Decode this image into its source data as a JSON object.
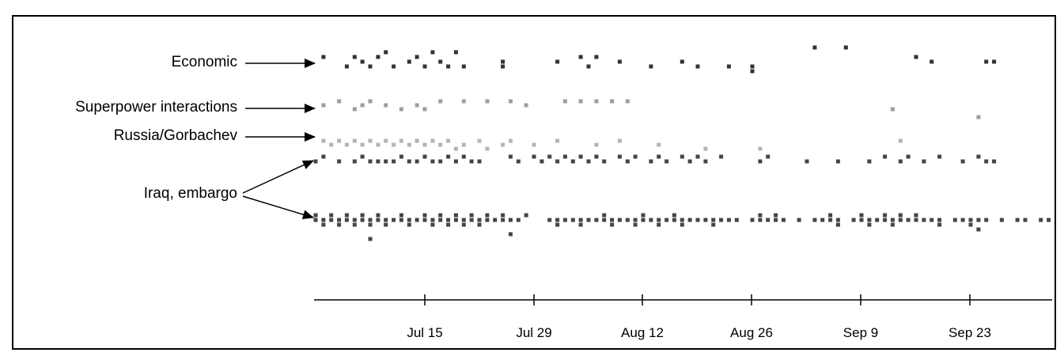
{
  "chart_data": {
    "type": "scatter",
    "xlabel": "",
    "ylabel": "",
    "x_ticks": [
      "Jul 15",
      "Jul 29",
      "Aug 12",
      "Aug 26",
      "Sep 9",
      "Sep 23"
    ],
    "xlim": [
      "2025-07-01",
      "2025-10-07"
    ],
    "grid": false,
    "annotations": [
      {
        "text": "Economic",
        "targets": [
          "economic"
        ]
      },
      {
        "text": "Superpower interactions",
        "targets": [
          "superpower"
        ]
      },
      {
        "text": "Russia/Gorbachev",
        "targets": [
          "russia"
        ]
      },
      {
        "text": "Iraq, embargo",
        "targets": [
          "iraq-upper",
          "iraq-lower"
        ]
      }
    ],
    "series": [
      {
        "id": "economic",
        "color": "#333333",
        "points": [
          [
            "2025-07-02",
            2
          ],
          [
            "2025-07-05",
            0
          ],
          [
            "2025-07-06",
            2
          ],
          [
            "2025-07-07",
            1
          ],
          [
            "2025-07-08",
            0
          ],
          [
            "2025-07-09",
            2
          ],
          [
            "2025-07-10",
            3
          ],
          [
            "2025-07-11",
            0
          ],
          [
            "2025-07-13",
            1
          ],
          [
            "2025-07-14",
            2
          ],
          [
            "2025-07-15",
            0
          ],
          [
            "2025-07-16",
            3
          ],
          [
            "2025-07-17",
            1
          ],
          [
            "2025-07-18",
            0
          ],
          [
            "2025-07-19",
            3
          ],
          [
            "2025-07-20",
            0
          ],
          [
            "2025-07-25",
            1
          ],
          [
            "2025-07-25",
            0
          ],
          [
            "2025-08-01",
            1
          ],
          [
            "2025-08-04",
            2
          ],
          [
            "2025-08-05",
            0
          ],
          [
            "2025-08-06",
            2
          ],
          [
            "2025-08-09",
            1
          ],
          [
            "2025-08-13",
            0
          ],
          [
            "2025-08-17",
            1
          ],
          [
            "2025-08-19",
            0
          ],
          [
            "2025-08-23",
            0
          ],
          [
            "2025-08-26",
            -1
          ],
          [
            "2025-08-26",
            0
          ],
          [
            "2025-09-03",
            4
          ],
          [
            "2025-09-07",
            4
          ],
          [
            "2025-09-16",
            2
          ],
          [
            "2025-09-18",
            1
          ],
          [
            "2025-09-25",
            1
          ],
          [
            "2025-09-26",
            1
          ]
        ]
      },
      {
        "id": "superpower",
        "color": "#9e9e9e",
        "points": [
          [
            "2025-07-02",
            1
          ],
          [
            "2025-07-04",
            2
          ],
          [
            "2025-07-06",
            0
          ],
          [
            "2025-07-07",
            1
          ],
          [
            "2025-07-08",
            2
          ],
          [
            "2025-07-10",
            1
          ],
          [
            "2025-07-12",
            0
          ],
          [
            "2025-07-14",
            1
          ],
          [
            "2025-07-15",
            0
          ],
          [
            "2025-07-17",
            2
          ],
          [
            "2025-07-20",
            2
          ],
          [
            "2025-07-23",
            2
          ],
          [
            "2025-07-26",
            2
          ],
          [
            "2025-07-28",
            1
          ],
          [
            "2025-08-02",
            2
          ],
          [
            "2025-08-04",
            2
          ],
          [
            "2025-08-06",
            2
          ],
          [
            "2025-08-08",
            2
          ],
          [
            "2025-08-10",
            2
          ],
          [
            "2025-09-13",
            0
          ],
          [
            "2025-09-24",
            -2
          ]
        ]
      },
      {
        "id": "russia",
        "color": "#b4b4b4",
        "points": [
          [
            "2025-07-02",
            1
          ],
          [
            "2025-07-03",
            0
          ],
          [
            "2025-07-04",
            1
          ],
          [
            "2025-07-05",
            0
          ],
          [
            "2025-07-06",
            1
          ],
          [
            "2025-07-07",
            0
          ],
          [
            "2025-07-08",
            1
          ],
          [
            "2025-07-09",
            0
          ],
          [
            "2025-07-10",
            1
          ],
          [
            "2025-07-11",
            0
          ],
          [
            "2025-07-12",
            1
          ],
          [
            "2025-07-13",
            0
          ],
          [
            "2025-07-14",
            1
          ],
          [
            "2025-07-15",
            0
          ],
          [
            "2025-07-16",
            1
          ],
          [
            "2025-07-17",
            0
          ],
          [
            "2025-07-18",
            1
          ],
          [
            "2025-07-19",
            -1
          ],
          [
            "2025-07-20",
            0
          ],
          [
            "2025-07-22",
            1
          ],
          [
            "2025-07-23",
            -1
          ],
          [
            "2025-07-25",
            0
          ],
          [
            "2025-07-26",
            1
          ],
          [
            "2025-07-29",
            0
          ],
          [
            "2025-08-01",
            1
          ],
          [
            "2025-08-06",
            0
          ],
          [
            "2025-08-09",
            1
          ],
          [
            "2025-08-14",
            0
          ],
          [
            "2025-08-20",
            -1
          ],
          [
            "2025-08-27",
            -1
          ],
          [
            "2025-09-14",
            1
          ],
          [
            "2025-10-05",
            0
          ]
        ]
      },
      {
        "id": "iraq-upper",
        "color": "#444444",
        "points": [
          [
            "2025-07-01",
            0
          ],
          [
            "2025-07-02",
            1
          ],
          [
            "2025-07-04",
            0
          ],
          [
            "2025-07-06",
            0
          ],
          [
            "2025-07-07",
            1
          ],
          [
            "2025-07-08",
            0
          ],
          [
            "2025-07-09",
            0
          ],
          [
            "2025-07-10",
            0
          ],
          [
            "2025-07-11",
            0
          ],
          [
            "2025-07-12",
            1
          ],
          [
            "2025-07-13",
            0
          ],
          [
            "2025-07-14",
            0
          ],
          [
            "2025-07-15",
            1
          ],
          [
            "2025-07-16",
            0
          ],
          [
            "2025-07-17",
            0
          ],
          [
            "2025-07-18",
            1
          ],
          [
            "2025-07-19",
            0
          ],
          [
            "2025-07-20",
            1
          ],
          [
            "2025-07-21",
            0
          ],
          [
            "2025-07-22",
            0
          ],
          [
            "2025-07-26",
            1
          ],
          [
            "2025-07-27",
            0
          ],
          [
            "2025-07-29",
            1
          ],
          [
            "2025-07-30",
            0
          ],
          [
            "2025-07-31",
            1
          ],
          [
            "2025-08-01",
            0
          ],
          [
            "2025-08-02",
            1
          ],
          [
            "2025-08-03",
            0
          ],
          [
            "2025-08-04",
            1
          ],
          [
            "2025-08-05",
            0
          ],
          [
            "2025-08-06",
            1
          ],
          [
            "2025-08-07",
            0
          ],
          [
            "2025-08-09",
            1
          ],
          [
            "2025-08-10",
            0
          ],
          [
            "2025-08-11",
            1
          ],
          [
            "2025-08-13",
            0
          ],
          [
            "2025-08-14",
            1
          ],
          [
            "2025-08-15",
            0
          ],
          [
            "2025-08-17",
            1
          ],
          [
            "2025-08-18",
            0
          ],
          [
            "2025-08-19",
            1
          ],
          [
            "2025-08-20",
            0
          ],
          [
            "2025-08-22",
            1
          ],
          [
            "2025-08-27",
            0
          ],
          [
            "2025-08-28",
            1
          ],
          [
            "2025-09-02",
            0
          ],
          [
            "2025-09-06",
            0
          ],
          [
            "2025-09-10",
            0
          ],
          [
            "2025-09-12",
            1
          ],
          [
            "2025-09-14",
            0
          ],
          [
            "2025-09-15",
            1
          ],
          [
            "2025-09-17",
            0
          ],
          [
            "2025-09-19",
            1
          ],
          [
            "2025-09-22",
            0
          ],
          [
            "2025-09-24",
            1
          ],
          [
            "2025-09-25",
            0
          ],
          [
            "2025-09-26",
            0
          ]
        ]
      },
      {
        "id": "iraq-lower",
        "color": "#444444",
        "points": [
          [
            "2025-07-01",
            0
          ],
          [
            "2025-07-01",
            1
          ],
          [
            "2025-07-02",
            0
          ],
          [
            "2025-07-02",
            -1
          ],
          [
            "2025-07-03",
            0
          ],
          [
            "2025-07-03",
            1
          ],
          [
            "2025-07-04",
            0
          ],
          [
            "2025-07-04",
            -1
          ],
          [
            "2025-07-05",
            0
          ],
          [
            "2025-07-05",
            1
          ],
          [
            "2025-07-06",
            0
          ],
          [
            "2025-07-06",
            -1
          ],
          [
            "2025-07-07",
            0
          ],
          [
            "2025-07-07",
            1
          ],
          [
            "2025-07-08",
            0
          ],
          [
            "2025-07-08",
            -1
          ],
          [
            "2025-07-09",
            0
          ],
          [
            "2025-07-09",
            1
          ],
          [
            "2025-07-10",
            0
          ],
          [
            "2025-07-10",
            -1
          ],
          [
            "2025-07-11",
            0
          ],
          [
            "2025-07-12",
            0
          ],
          [
            "2025-07-12",
            1
          ],
          [
            "2025-07-13",
            0
          ],
          [
            "2025-07-13",
            -1
          ],
          [
            "2025-07-14",
            0
          ],
          [
            "2025-07-15",
            0
          ],
          [
            "2025-07-15",
            1
          ],
          [
            "2025-07-16",
            0
          ],
          [
            "2025-07-16",
            -1
          ],
          [
            "2025-07-17",
            0
          ],
          [
            "2025-07-17",
            1
          ],
          [
            "2025-07-18",
            0
          ],
          [
            "2025-07-18",
            -1
          ],
          [
            "2025-07-19",
            0
          ],
          [
            "2025-07-19",
            1
          ],
          [
            "2025-07-20",
            0
          ],
          [
            "2025-07-20",
            -1
          ],
          [
            "2025-07-21",
            0
          ],
          [
            "2025-07-21",
            1
          ],
          [
            "2025-07-22",
            0
          ],
          [
            "2025-07-22",
            -1
          ],
          [
            "2025-07-23",
            0
          ],
          [
            "2025-07-23",
            1
          ],
          [
            "2025-07-24",
            0
          ],
          [
            "2025-07-25",
            0
          ],
          [
            "2025-07-25",
            1
          ],
          [
            "2025-07-26",
            0
          ],
          [
            "2025-07-27",
            0
          ],
          [
            "2025-07-28",
            1
          ],
          [
            "2025-07-31",
            0
          ],
          [
            "2025-08-01",
            0
          ],
          [
            "2025-08-01",
            -1
          ],
          [
            "2025-08-02",
            0
          ],
          [
            "2025-08-03",
            0
          ],
          [
            "2025-08-04",
            0
          ],
          [
            "2025-08-04",
            -1
          ],
          [
            "2025-08-05",
            0
          ],
          [
            "2025-08-06",
            0
          ],
          [
            "2025-08-07",
            0
          ],
          [
            "2025-08-07",
            1
          ],
          [
            "2025-08-08",
            0
          ],
          [
            "2025-08-08",
            -1
          ],
          [
            "2025-08-09",
            0
          ],
          [
            "2025-08-10",
            0
          ],
          [
            "2025-08-11",
            0
          ],
          [
            "2025-08-11",
            -1
          ],
          [
            "2025-08-12",
            0
          ],
          [
            "2025-08-12",
            1
          ],
          [
            "2025-08-13",
            0
          ],
          [
            "2025-08-14",
            0
          ],
          [
            "2025-08-14",
            -1
          ],
          [
            "2025-08-15",
            0
          ],
          [
            "2025-08-16",
            0
          ],
          [
            "2025-08-16",
            1
          ],
          [
            "2025-08-17",
            0
          ],
          [
            "2025-08-17",
            -1
          ],
          [
            "2025-08-18",
            0
          ],
          [
            "2025-08-19",
            0
          ],
          [
            "2025-08-20",
            0
          ],
          [
            "2025-08-21",
            0
          ],
          [
            "2025-08-21",
            -1
          ],
          [
            "2025-08-22",
            0
          ],
          [
            "2025-08-23",
            0
          ],
          [
            "2025-08-24",
            0
          ],
          [
            "2025-08-26",
            0
          ],
          [
            "2025-08-27",
            0
          ],
          [
            "2025-08-27",
            1
          ],
          [
            "2025-08-28",
            0
          ],
          [
            "2025-08-29",
            0
          ],
          [
            "2025-08-29",
            1
          ],
          [
            "2025-08-30",
            0
          ],
          [
            "2025-09-01",
            0
          ],
          [
            "2025-09-03",
            0
          ],
          [
            "2025-09-04",
            0
          ],
          [
            "2025-09-05",
            0
          ],
          [
            "2025-09-05",
            1
          ],
          [
            "2025-09-06",
            0
          ],
          [
            "2025-09-06",
            -1
          ],
          [
            "2025-09-08",
            0
          ],
          [
            "2025-09-09",
            0
          ],
          [
            "2025-09-09",
            1
          ],
          [
            "2025-09-10",
            0
          ],
          [
            "2025-09-10",
            -1
          ],
          [
            "2025-09-11",
            0
          ],
          [
            "2025-09-12",
            0
          ],
          [
            "2025-09-12",
            1
          ],
          [
            "2025-09-13",
            0
          ],
          [
            "2025-09-13",
            -1
          ],
          [
            "2025-09-14",
            0
          ],
          [
            "2025-09-14",
            1
          ],
          [
            "2025-09-15",
            0
          ],
          [
            "2025-09-16",
            0
          ],
          [
            "2025-09-16",
            1
          ],
          [
            "2025-09-17",
            0
          ],
          [
            "2025-09-18",
            0
          ],
          [
            "2025-09-19",
            0
          ],
          [
            "2025-09-19",
            -1
          ],
          [
            "2025-09-21",
            0
          ],
          [
            "2025-09-22",
            0
          ],
          [
            "2025-09-23",
            0
          ],
          [
            "2025-09-23",
            -1
          ],
          [
            "2025-09-24",
            0
          ],
          [
            "2025-09-24",
            -2
          ],
          [
            "2025-09-25",
            0
          ],
          [
            "2025-09-27",
            0
          ],
          [
            "2025-09-29",
            0
          ],
          [
            "2025-09-30",
            0
          ],
          [
            "2025-10-02",
            0
          ],
          [
            "2025-10-03",
            0
          ],
          [
            "2025-07-26",
            -3
          ],
          [
            "2025-07-08",
            -4
          ]
        ]
      }
    ]
  }
}
